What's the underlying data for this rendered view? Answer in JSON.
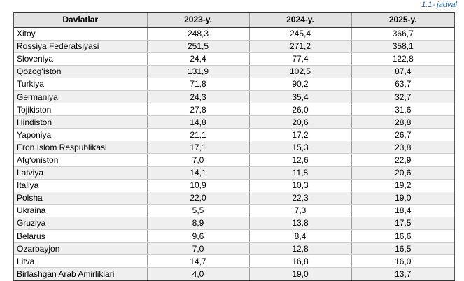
{
  "caption": "1.1- jadval",
  "table": {
    "headers": [
      "Davlatlar",
      "2023-y.",
      "2024-y.",
      "2025-y."
    ],
    "rows": [
      [
        "Xitoy",
        "248,3",
        "245,4",
        "366,7"
      ],
      [
        "Rossiya Federatsiyasi",
        "251,5",
        "271,2",
        "358,1"
      ],
      [
        "Sloveniya",
        "24,4",
        "77,4",
        "122,8"
      ],
      [
        "Qozog‘iston",
        "131,9",
        "102,5",
        "87,4"
      ],
      [
        "Turkiya",
        "71,8",
        "90,2",
        "63,7"
      ],
      [
        "Germaniya",
        "24,3",
        "35,4",
        "32,7"
      ],
      [
        "Tojikiston",
        "27,8",
        "26,0",
        "31,6"
      ],
      [
        "Hindiston",
        "14,8",
        "20,6",
        "28,8"
      ],
      [
        "Yaponiya",
        "21,1",
        "17,2",
        "26,7"
      ],
      [
        "Eron Islom Respublikasi",
        "17,1",
        "15,3",
        "23,8"
      ],
      [
        "Afg‘oniston",
        "7,0",
        "12,6",
        "22,9"
      ],
      [
        "Latviya",
        "14,1",
        "11,8",
        "20,6"
      ],
      [
        "Italiya",
        "10,9",
        "10,3",
        "19,2"
      ],
      [
        "Polsha",
        "22,0",
        "22,3",
        "19,0"
      ],
      [
        "Ukraina",
        "5,5",
        "7,3",
        "18,4"
      ],
      [
        "Gruziya",
        "8,9",
        "13,8",
        "17,5"
      ],
      [
        "Belarus",
        "9,6",
        "8,4",
        "16,6"
      ],
      [
        "Ozarbayjon",
        "7,0",
        "12,8",
        "16,5"
      ],
      [
        "Litva",
        "14,7",
        "16,8",
        "16,0"
      ],
      [
        "Birlashgan Arab Amirliklari",
        "4,0",
        "19,0",
        "13,7"
      ]
    ]
  }
}
